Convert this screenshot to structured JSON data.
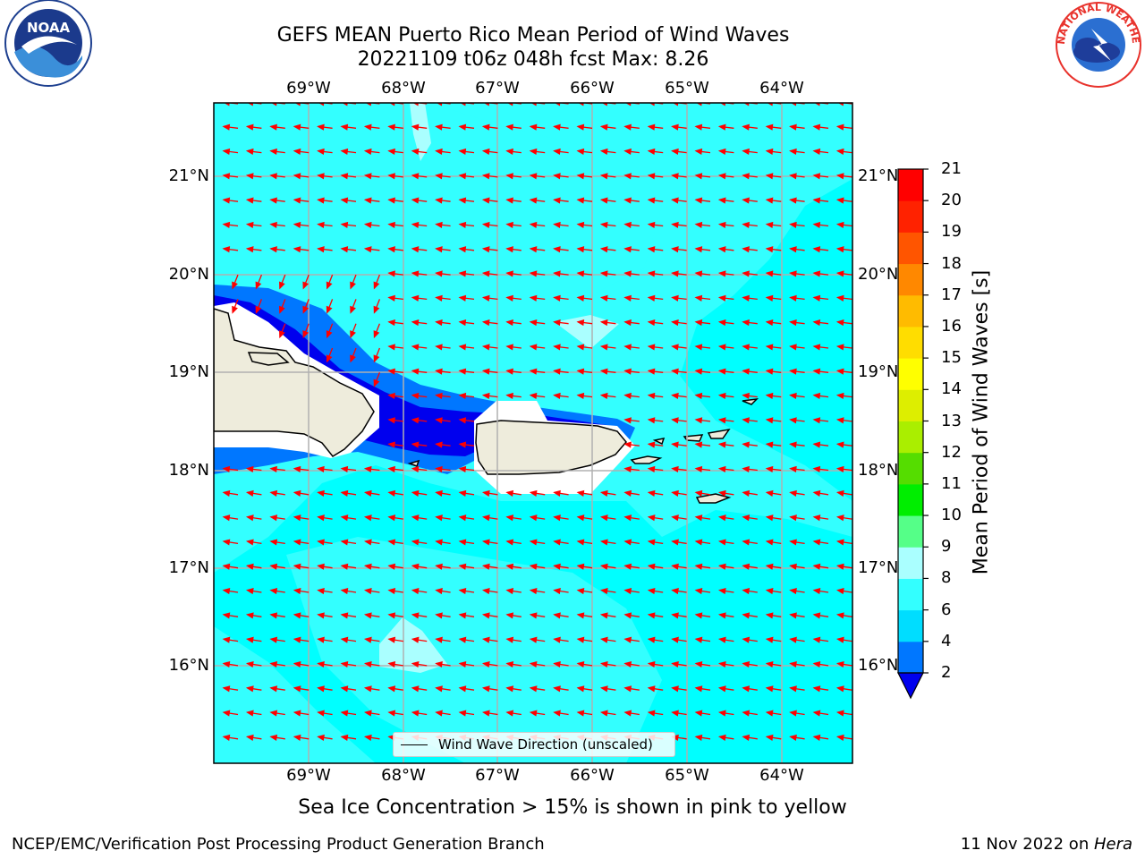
{
  "header": {
    "title_line1": "GEFS MEAN Puerto Rico Mean Period of Wind Waves",
    "title_line2": "20221109 t06z 048h fcst   Max: 8.26"
  },
  "map": {
    "lon_ticks": [
      "69°W",
      "68°W",
      "67°W",
      "66°W",
      "65°W",
      "64°W"
    ],
    "lat_ticks": [
      "21°N",
      "20°N",
      "19°N",
      "18°N",
      "17°N",
      "16°N"
    ],
    "legend_label": "Wind Wave Direction (unscaled)",
    "field_color": "#00ffff",
    "land_color": "#eeecdc",
    "arrow_color": "#ff0000"
  },
  "colorbar": {
    "title": "Mean Period of Wind Waves [s]",
    "levels": [
      "2",
      "4",
      "6",
      "8",
      "9",
      "10",
      "11",
      "12",
      "13",
      "14",
      "15",
      "16",
      "17",
      "18",
      "19",
      "20",
      "21"
    ],
    "colors": [
      "#0000ee",
      "#0077ff",
      "#00ddff",
      "#33ffff",
      "#aaffff",
      "#55ff88",
      "#00ee00",
      "#55dd00",
      "#aaee00",
      "#ddee00",
      "#ffff00",
      "#ffdd00",
      "#ffbb00",
      "#ff8800",
      "#ff5500",
      "#ff2200",
      "#ff0000"
    ]
  },
  "footer": {
    "subtitle": "Sea Ice Concentration > 15% is shown in pink to yellow",
    "left": "NCEP/EMC/Verification Post Processing Product Generation Branch",
    "right_prefix": "11 Nov 2022 on ",
    "right_host": "Hera"
  },
  "logos": {
    "left_text": "NOAA",
    "right_text": "NATIONAL WEATHER SERVICE"
  }
}
